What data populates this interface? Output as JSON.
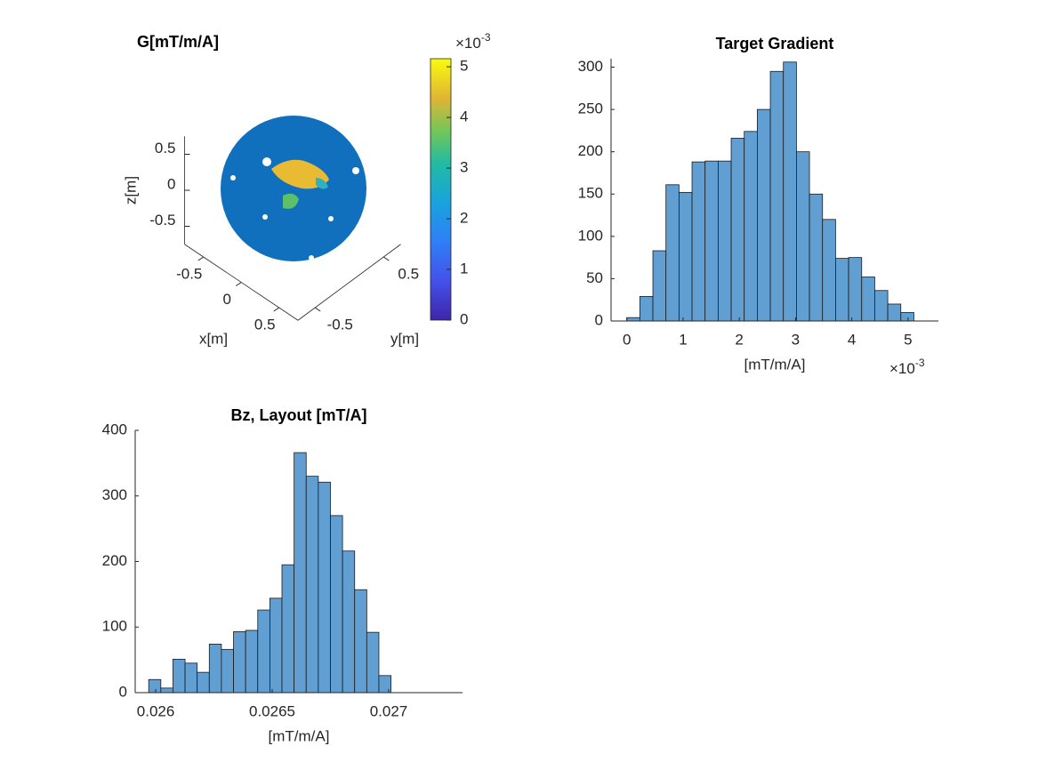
{
  "chart_data": [
    {
      "type": "surface3d",
      "title": "G[mT/m/A]",
      "xlabel": "x[m]",
      "ylabel": "y[m]",
      "zlabel": "z[m]",
      "xlim": [
        -0.75,
        0.75
      ],
      "ylim": [
        -0.75,
        0.75
      ],
      "zlim": [
        -0.75,
        0.75
      ],
      "xticks": [
        -0.5,
        0,
        0.5
      ],
      "yticks": [
        -0.5,
        0.5
      ],
      "zticks": [
        -0.5,
        0,
        0.5
      ],
      "colorbar": {
        "clim": [
          0,
          5.16
        ],
        "ticks": [
          0,
          1,
          2,
          3,
          4,
          5
        ],
        "exponent_base": "×10",
        "exponent_power": "-3"
      }
    },
    {
      "type": "histogram",
      "title": "Target Gradient",
      "xlabel": "[mT/m/A]",
      "color": "#619fd3",
      "bins": [
        0,
        0.232,
        0.464,
        0.696,
        0.928,
        1.16,
        1.392,
        1.624,
        1.856,
        2.088,
        2.32,
        2.552,
        2.784,
        3.016,
        3.248,
        3.48,
        3.712,
        3.944,
        4.176,
        4.408,
        4.64,
        4.872,
        5.104
      ],
      "values": [
        4,
        29,
        83,
        161,
        152,
        188,
        189,
        189,
        216,
        224,
        250,
        295,
        306,
        200,
        150,
        120,
        74,
        75,
        52,
        36,
        20,
        10
      ],
      "xlim": [
        -0.28,
        5.54
      ],
      "ylim": [
        0,
        310
      ],
      "xticks": [
        0,
        1,
        2,
        3,
        4,
        5
      ],
      "yticks": [
        0,
        50,
        100,
        150,
        200,
        250,
        300
      ],
      "x_exponent_base": "×10",
      "x_exponent_power": "-3"
    },
    {
      "type": "histogram",
      "title": "Bz, Layout [mT/A]",
      "xlabel": "[mT/m/A]",
      "color": "#619fd3",
      "bins": [
        0.02597,
        0.026022,
        0.026074,
        0.026126,
        0.026178,
        0.02623,
        0.026282,
        0.026334,
        0.026386,
        0.026438,
        0.02649,
        0.026542,
        0.026594,
        0.026646,
        0.026698,
        0.02675,
        0.026802,
        0.026854,
        0.026906,
        0.026958,
        0.02701,
        0.027062,
        0.027114,
        0.027166,
        0.027218,
        0.02727
      ],
      "values": [
        20,
        7,
        51,
        45,
        31,
        74,
        66,
        93,
        95,
        126,
        144,
        195,
        366,
        330,
        321,
        270,
        216,
        157,
        92,
        26,
        0,
        0,
        0,
        0,
        0
      ],
      "xlim": [
        0.025912,
        0.027317
      ],
      "ylim": [
        0,
        400
      ],
      "xticks": [
        0.026,
        0.0265,
        0.027
      ],
      "yticks": [
        0,
        100,
        200,
        300,
        400
      ]
    }
  ]
}
